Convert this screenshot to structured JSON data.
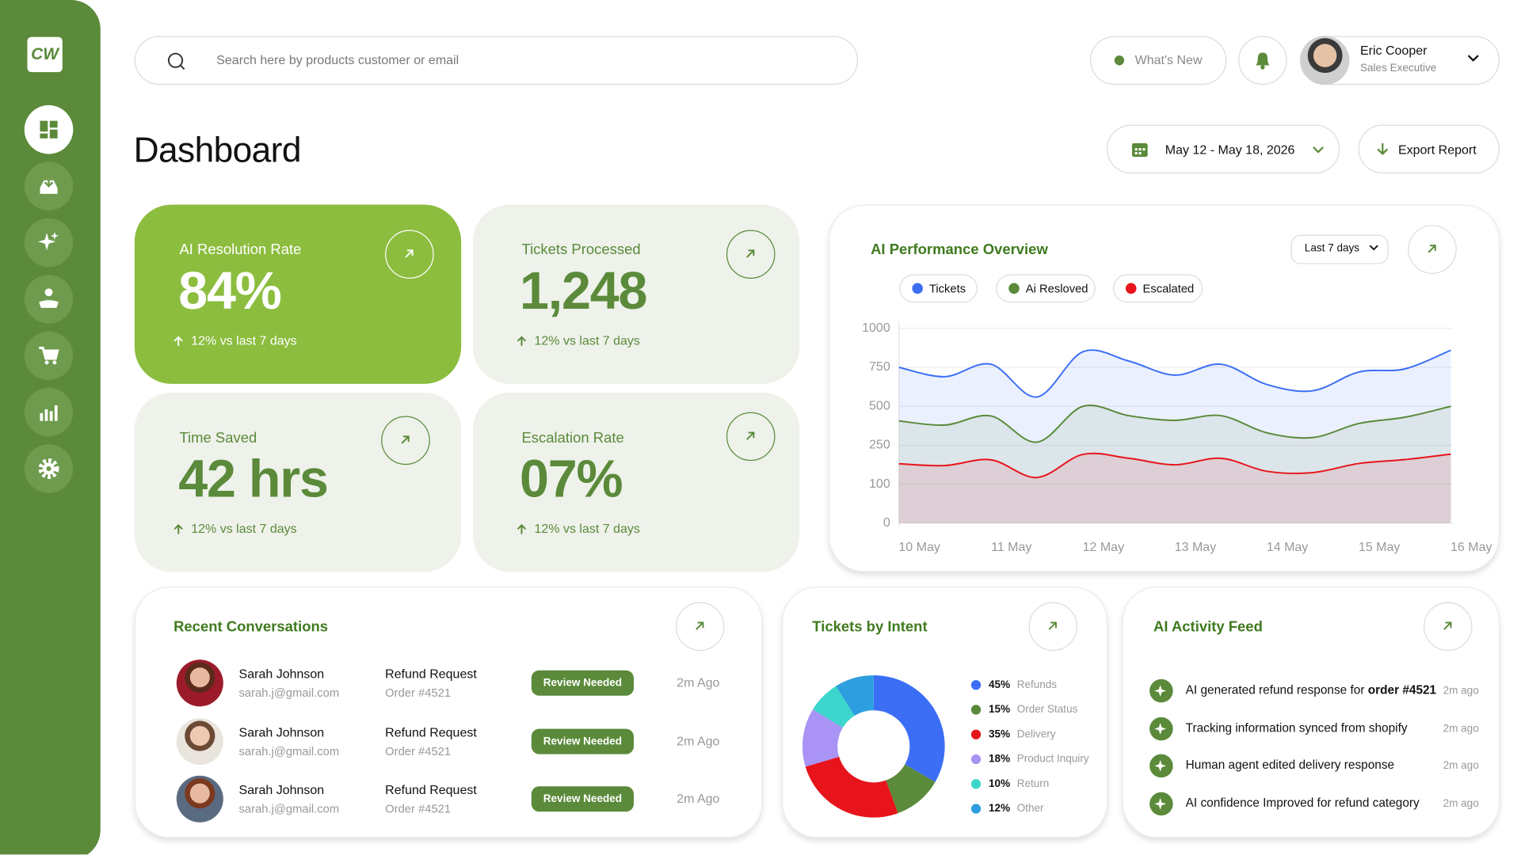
{
  "sidebar": {
    "logo": "CW"
  },
  "search": {
    "placeholder": "Search here by products customer or email"
  },
  "topbar": {
    "whats_new": "What's New",
    "user": {
      "name": "Eric Cooper",
      "role": "Sales Executive"
    }
  },
  "page": {
    "title": "Dashboard",
    "date_range": "May 12 - May 18, 2026",
    "export": "Export Report"
  },
  "kpis": [
    {
      "label": "AI Resolution Rate",
      "value": "84%",
      "delta": "12% vs last 7 days"
    },
    {
      "label": "Tickets Processed",
      "value": "1,248",
      "delta": "12% vs last 7 days"
    },
    {
      "label": "Time Saved",
      "value": "42 hrs",
      "delta": "12% vs last 7 days"
    },
    {
      "label": "Escalation Rate",
      "value": "07%",
      "delta": "12% vs last 7 days"
    }
  ],
  "chart_data": [
    {
      "type": "line",
      "title": "AI Performance Overview",
      "period": "Last 7 days",
      "categories": [
        "10 May",
        null,
        "11 May",
        null,
        "12 May",
        null,
        "13 May",
        null,
        "14 May",
        null,
        "15 May",
        null,
        "16 May"
      ],
      "series": [
        {
          "name": "Tickets",
          "color": "#3b6ef5",
          "values": [
            750,
            690,
            770,
            560,
            850,
            790,
            700,
            770,
            640,
            600,
            720,
            740,
            860
          ]
        },
        {
          "name": "Ai Resloved",
          "color": "#5a8a3a",
          "values": [
            406,
            380,
            438,
            270,
            500,
            440,
            410,
            440,
            330,
            300,
            390,
            430,
            500
          ]
        },
        {
          "name": "Escalated",
          "color": "#e8141b",
          "values": [
            179,
            172,
            194,
            126,
            215,
            200,
            175,
            200,
            150,
            145,
            180,
            195,
            216
          ]
        }
      ],
      "ylim": [
        0,
        1000
      ],
      "yticks": [
        0,
        100,
        250,
        500,
        750,
        1000
      ],
      "grid": true
    },
    {
      "type": "pie",
      "title": "Tickets by Intent",
      "categories": [
        "Refunds",
        "Order Status",
        "Delivery",
        "Product Inquiry",
        "Return",
        "Other"
      ],
      "values": [
        45,
        15,
        35,
        18,
        10,
        12
      ],
      "value_labels": [
        "45%",
        "15%",
        "35%",
        "18%",
        "10%",
        "12%"
      ],
      "colors": [
        "#3b6ef5",
        "#5a8a3a",
        "#e8141b",
        "#a993f5",
        "#3dd6cc",
        "#2d9fe0"
      ]
    }
  ],
  "conversations": {
    "title": "Recent Conversations",
    "rows": [
      {
        "name": "Sarah Johnson",
        "email": "sarah.j@gmail.com",
        "topic": "Refund Request",
        "order": "Order #4521",
        "status": "Review Needed",
        "time": "2m Ago"
      },
      {
        "name": "Sarah Johnson",
        "email": "sarah.j@gmail.com",
        "topic": "Refund Request",
        "order": "Order #4521",
        "status": "Review Needed",
        "time": "2m Ago"
      },
      {
        "name": "Sarah Johnson",
        "email": "sarah.j@gmail.com",
        "topic": "Refund Request",
        "order": "Order #4521",
        "status": "Review Needed",
        "time": "2m Ago"
      }
    ]
  },
  "activity": {
    "title": "AI Activity Feed",
    "items": [
      {
        "text": "AI generated refund response for ",
        "bold": "order #4521",
        "time": "2m ago"
      },
      {
        "text": "Tracking information synced from shopify",
        "time": "2m ago"
      },
      {
        "text": "Human agent edited delivery response",
        "time": "2m ago"
      },
      {
        "text": "AI confidence Improved for refund category",
        "time": "2m ago"
      }
    ]
  }
}
